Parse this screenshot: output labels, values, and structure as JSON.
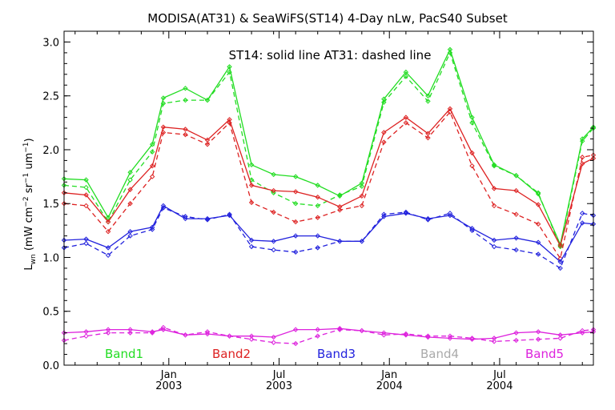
{
  "chart_data": {
    "type": "line",
    "title": "MODISA(AT31) & SeaWiFS(ST14) 4-Day nLw, PacS40 Subset",
    "annotation": "ST14: solid line   AT31: dashed line",
    "ylabel": "L_wn (mW cm^-2 sr^-1 um^-1)",
    "ylabel_parts": {
      "base": "L",
      "sub": "wn",
      "units_open": " (mW cm",
      "exp1": "−2",
      "sr": " sr",
      "exp2": "−1",
      "um": " um",
      "exp3": "−1",
      "units_close": ")"
    },
    "xlim": [
      0,
      48
    ],
    "ylim": [
      0.0,
      3.1
    ],
    "yticks": [
      {
        "value": 0.0,
        "label": "0.0"
      },
      {
        "value": 0.5,
        "label": "0.5"
      },
      {
        "value": 1.0,
        "label": "1.0"
      },
      {
        "value": 1.5,
        "label": "1.5"
      },
      {
        "value": 2.0,
        "label": "2.0"
      },
      {
        "value": 2.5,
        "label": "2.5"
      },
      {
        "value": 3.0,
        "label": "3.0"
      }
    ],
    "xticks": [
      {
        "value": 9.5,
        "line1": "Jan",
        "line2": "2003"
      },
      {
        "value": 19.5,
        "line1": "Jul",
        "line2": "2003"
      },
      {
        "value": 29.5,
        "line1": "Jan",
        "line2": "2004"
      },
      {
        "value": 39.5,
        "line1": "Jul",
        "line2": "2004"
      }
    ],
    "grid": false,
    "legend_position": "bottom",
    "series": [
      {
        "name": "Band1",
        "color": "#22dd22",
        "st14": {
          "x": [
            0,
            2,
            4,
            6,
            8,
            9,
            11,
            13,
            15,
            17,
            19,
            21,
            23,
            25,
            27,
            29,
            31,
            33,
            35,
            37,
            39,
            41,
            43,
            45,
            47,
            48
          ],
          "y": [
            1.73,
            1.72,
            1.37,
            1.79,
            2.05,
            2.48,
            2.57,
            2.46,
            2.77,
            1.86,
            1.77,
            1.75,
            1.67,
            1.57,
            1.69,
            2.47,
            2.72,
            2.5,
            2.93,
            2.3,
            1.86,
            1.76,
            1.59,
            1.12,
            2.1,
            2.21
          ]
        },
        "at31": {
          "x": [
            0,
            2,
            4,
            6,
            8,
            9,
            11,
            13,
            15,
            17,
            19,
            21,
            23,
            25,
            27,
            29,
            31,
            33,
            35,
            37,
            39,
            41,
            43,
            45,
            47,
            48
          ],
          "y": [
            1.67,
            1.65,
            1.33,
            1.72,
            1.98,
            2.43,
            2.46,
            2.46,
            2.72,
            1.72,
            1.6,
            1.5,
            1.48,
            1.58,
            1.66,
            2.44,
            2.68,
            2.45,
            2.9,
            2.25,
            1.85,
            1.76,
            1.6,
            1.1,
            2.08,
            2.2
          ]
        }
      },
      {
        "name": "Band2",
        "color": "#dd2222",
        "st14": {
          "x": [
            0,
            2,
            4,
            6,
            8,
            9,
            11,
            13,
            15,
            17,
            19,
            21,
            23,
            25,
            27,
            29,
            31,
            33,
            35,
            37,
            39,
            41,
            43,
            45,
            47,
            48
          ],
          "y": [
            1.6,
            1.58,
            1.33,
            1.63,
            1.85,
            2.21,
            2.19,
            2.09,
            2.28,
            1.67,
            1.62,
            1.61,
            1.56,
            1.47,
            1.57,
            2.16,
            2.3,
            2.15,
            2.38,
            1.97,
            1.64,
            1.62,
            1.49,
            1.11,
            1.87,
            1.92
          ]
        },
        "at31": {
          "x": [
            0,
            2,
            4,
            6,
            8,
            9,
            11,
            13,
            15,
            17,
            19,
            21,
            23,
            25,
            27,
            29,
            31,
            33,
            35,
            37,
            39,
            41,
            43,
            45,
            47,
            48
          ],
          "y": [
            1.5,
            1.48,
            1.24,
            1.5,
            1.75,
            2.16,
            2.14,
            2.05,
            2.25,
            1.51,
            1.42,
            1.33,
            1.37,
            1.44,
            1.48,
            2.07,
            2.25,
            2.11,
            2.35,
            1.85,
            1.48,
            1.4,
            1.31,
            0.99,
            1.93,
            1.95
          ]
        }
      },
      {
        "name": "Band3",
        "color": "#2222dd",
        "st14": {
          "x": [
            0,
            2,
            4,
            6,
            8,
            9,
            11,
            13,
            15,
            17,
            19,
            21,
            23,
            25,
            27,
            29,
            31,
            33,
            35,
            37,
            39,
            41,
            43,
            45,
            47,
            48
          ],
          "y": [
            1.16,
            1.17,
            1.09,
            1.24,
            1.28,
            1.48,
            1.36,
            1.36,
            1.39,
            1.16,
            1.15,
            1.2,
            1.2,
            1.15,
            1.15,
            1.38,
            1.41,
            1.36,
            1.39,
            1.27,
            1.16,
            1.18,
            1.14,
            0.96,
            1.32,
            1.31
          ]
        },
        "at31": {
          "x": [
            0,
            2,
            4,
            6,
            8,
            9,
            11,
            13,
            15,
            17,
            19,
            21,
            23,
            25,
            27,
            29,
            31,
            33,
            35,
            37,
            39,
            41,
            43,
            45,
            47,
            48
          ],
          "y": [
            1.09,
            1.13,
            1.02,
            1.2,
            1.26,
            1.46,
            1.38,
            1.35,
            1.4,
            1.1,
            1.07,
            1.05,
            1.09,
            1.15,
            1.15,
            1.4,
            1.42,
            1.35,
            1.41,
            1.25,
            1.1,
            1.07,
            1.03,
            0.9,
            1.41,
            1.39
          ]
        }
      },
      {
        "name": "Band4",
        "color": "#aaaaaa",
        "st14": {
          "x": [],
          "y": []
        },
        "at31": {
          "x": [],
          "y": []
        }
      },
      {
        "name": "Band5",
        "color": "#dd22dd",
        "st14": {
          "x": [
            0,
            2,
            4,
            6,
            8,
            9,
            11,
            13,
            15,
            17,
            19,
            21,
            23,
            25,
            27,
            29,
            31,
            33,
            35,
            37,
            39,
            41,
            43,
            45,
            47,
            48
          ],
          "y": [
            0.3,
            0.31,
            0.33,
            0.33,
            0.31,
            0.33,
            0.28,
            0.29,
            0.27,
            0.27,
            0.26,
            0.33,
            0.33,
            0.34,
            0.32,
            0.3,
            0.28,
            0.26,
            0.25,
            0.24,
            0.25,
            0.3,
            0.31,
            0.28,
            0.3,
            0.31
          ]
        },
        "at31": {
          "x": [
            0,
            2,
            4,
            6,
            8,
            9,
            11,
            13,
            15,
            17,
            19,
            21,
            23,
            25,
            27,
            29,
            31,
            33,
            35,
            37,
            39,
            41,
            43,
            45,
            47,
            48
          ],
          "y": [
            0.23,
            0.27,
            0.3,
            0.3,
            0.3,
            0.35,
            0.28,
            0.31,
            0.27,
            0.24,
            0.21,
            0.2,
            0.27,
            0.33,
            0.32,
            0.28,
            0.29,
            0.27,
            0.27,
            0.25,
            0.22,
            0.23,
            0.24,
            0.25,
            0.32,
            0.33
          ]
        }
      }
    ]
  }
}
